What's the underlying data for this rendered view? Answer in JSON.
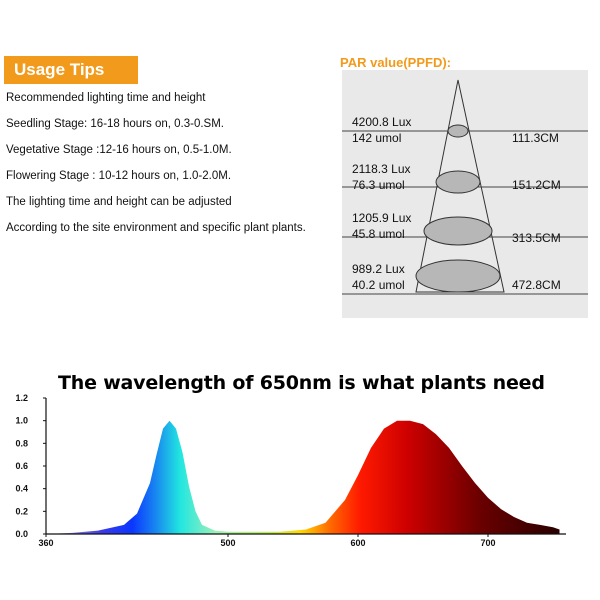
{
  "usage_tips": {
    "title": "Usage Tips",
    "lines": [
      "Recommended lighting time and height",
      "Seedling Stage: 16-18 hours on, 0.3-0.SM.",
      "Vegetative Stage :12-16 hours on, 0.5-1.0M.",
      "Flowering Stage : 10-12 hours on, 1.0-2.0M.",
      "The lighting time and height can be adjusted",
      "According to the site environment and specific plant plants."
    ]
  },
  "par": {
    "title": "PAR value(PPFD):",
    "rows": [
      {
        "lux": "4200.8 Lux",
        "umol": "142 umol",
        "distance": "111.3CM"
      },
      {
        "lux": "2118.3 Lux",
        "umol": "76.3 umol",
        "distance": "151.2CM"
      },
      {
        "lux": "1205.9 Lux",
        "umol": "45.8 umol",
        "distance": "313.5CM"
      },
      {
        "lux": "989.2 Lux",
        "umol": "40.2 umol",
        "distance": "472.8CM"
      }
    ]
  },
  "chart_data": {
    "type": "area",
    "title": "The wavelength of 650nm is what plants need",
    "xlabel": "",
    "ylabel": "",
    "xlim": [
      360,
      760
    ],
    "ylim": [
      0,
      1.2
    ],
    "x_ticks": [
      "360",
      "500",
      "600",
      "700"
    ],
    "y_ticks": [
      "0.0",
      "0.2",
      "0.4",
      "0.6",
      "0.8",
      "1.0",
      "1.2"
    ],
    "grid": false,
    "series": [
      {
        "x": [
          360,
          380,
          400,
          420,
          430,
          440,
          445,
          450,
          455,
          460,
          465,
          470,
          475,
          480,
          490,
          500,
          520,
          540,
          560,
          575,
          590,
          600,
          610,
          620,
          630,
          640,
          650,
          660,
          670,
          680,
          690,
          700,
          710,
          720,
          730,
          740,
          750,
          755
        ],
        "y": [
          0.0,
          0.01,
          0.03,
          0.08,
          0.18,
          0.45,
          0.7,
          0.93,
          1.0,
          0.93,
          0.72,
          0.42,
          0.2,
          0.08,
          0.03,
          0.02,
          0.02,
          0.02,
          0.04,
          0.1,
          0.3,
          0.52,
          0.76,
          0.93,
          1.0,
          1.0,
          0.97,
          0.88,
          0.76,
          0.6,
          0.45,
          0.32,
          0.22,
          0.15,
          0.1,
          0.08,
          0.06,
          0.04
        ]
      }
    ]
  }
}
